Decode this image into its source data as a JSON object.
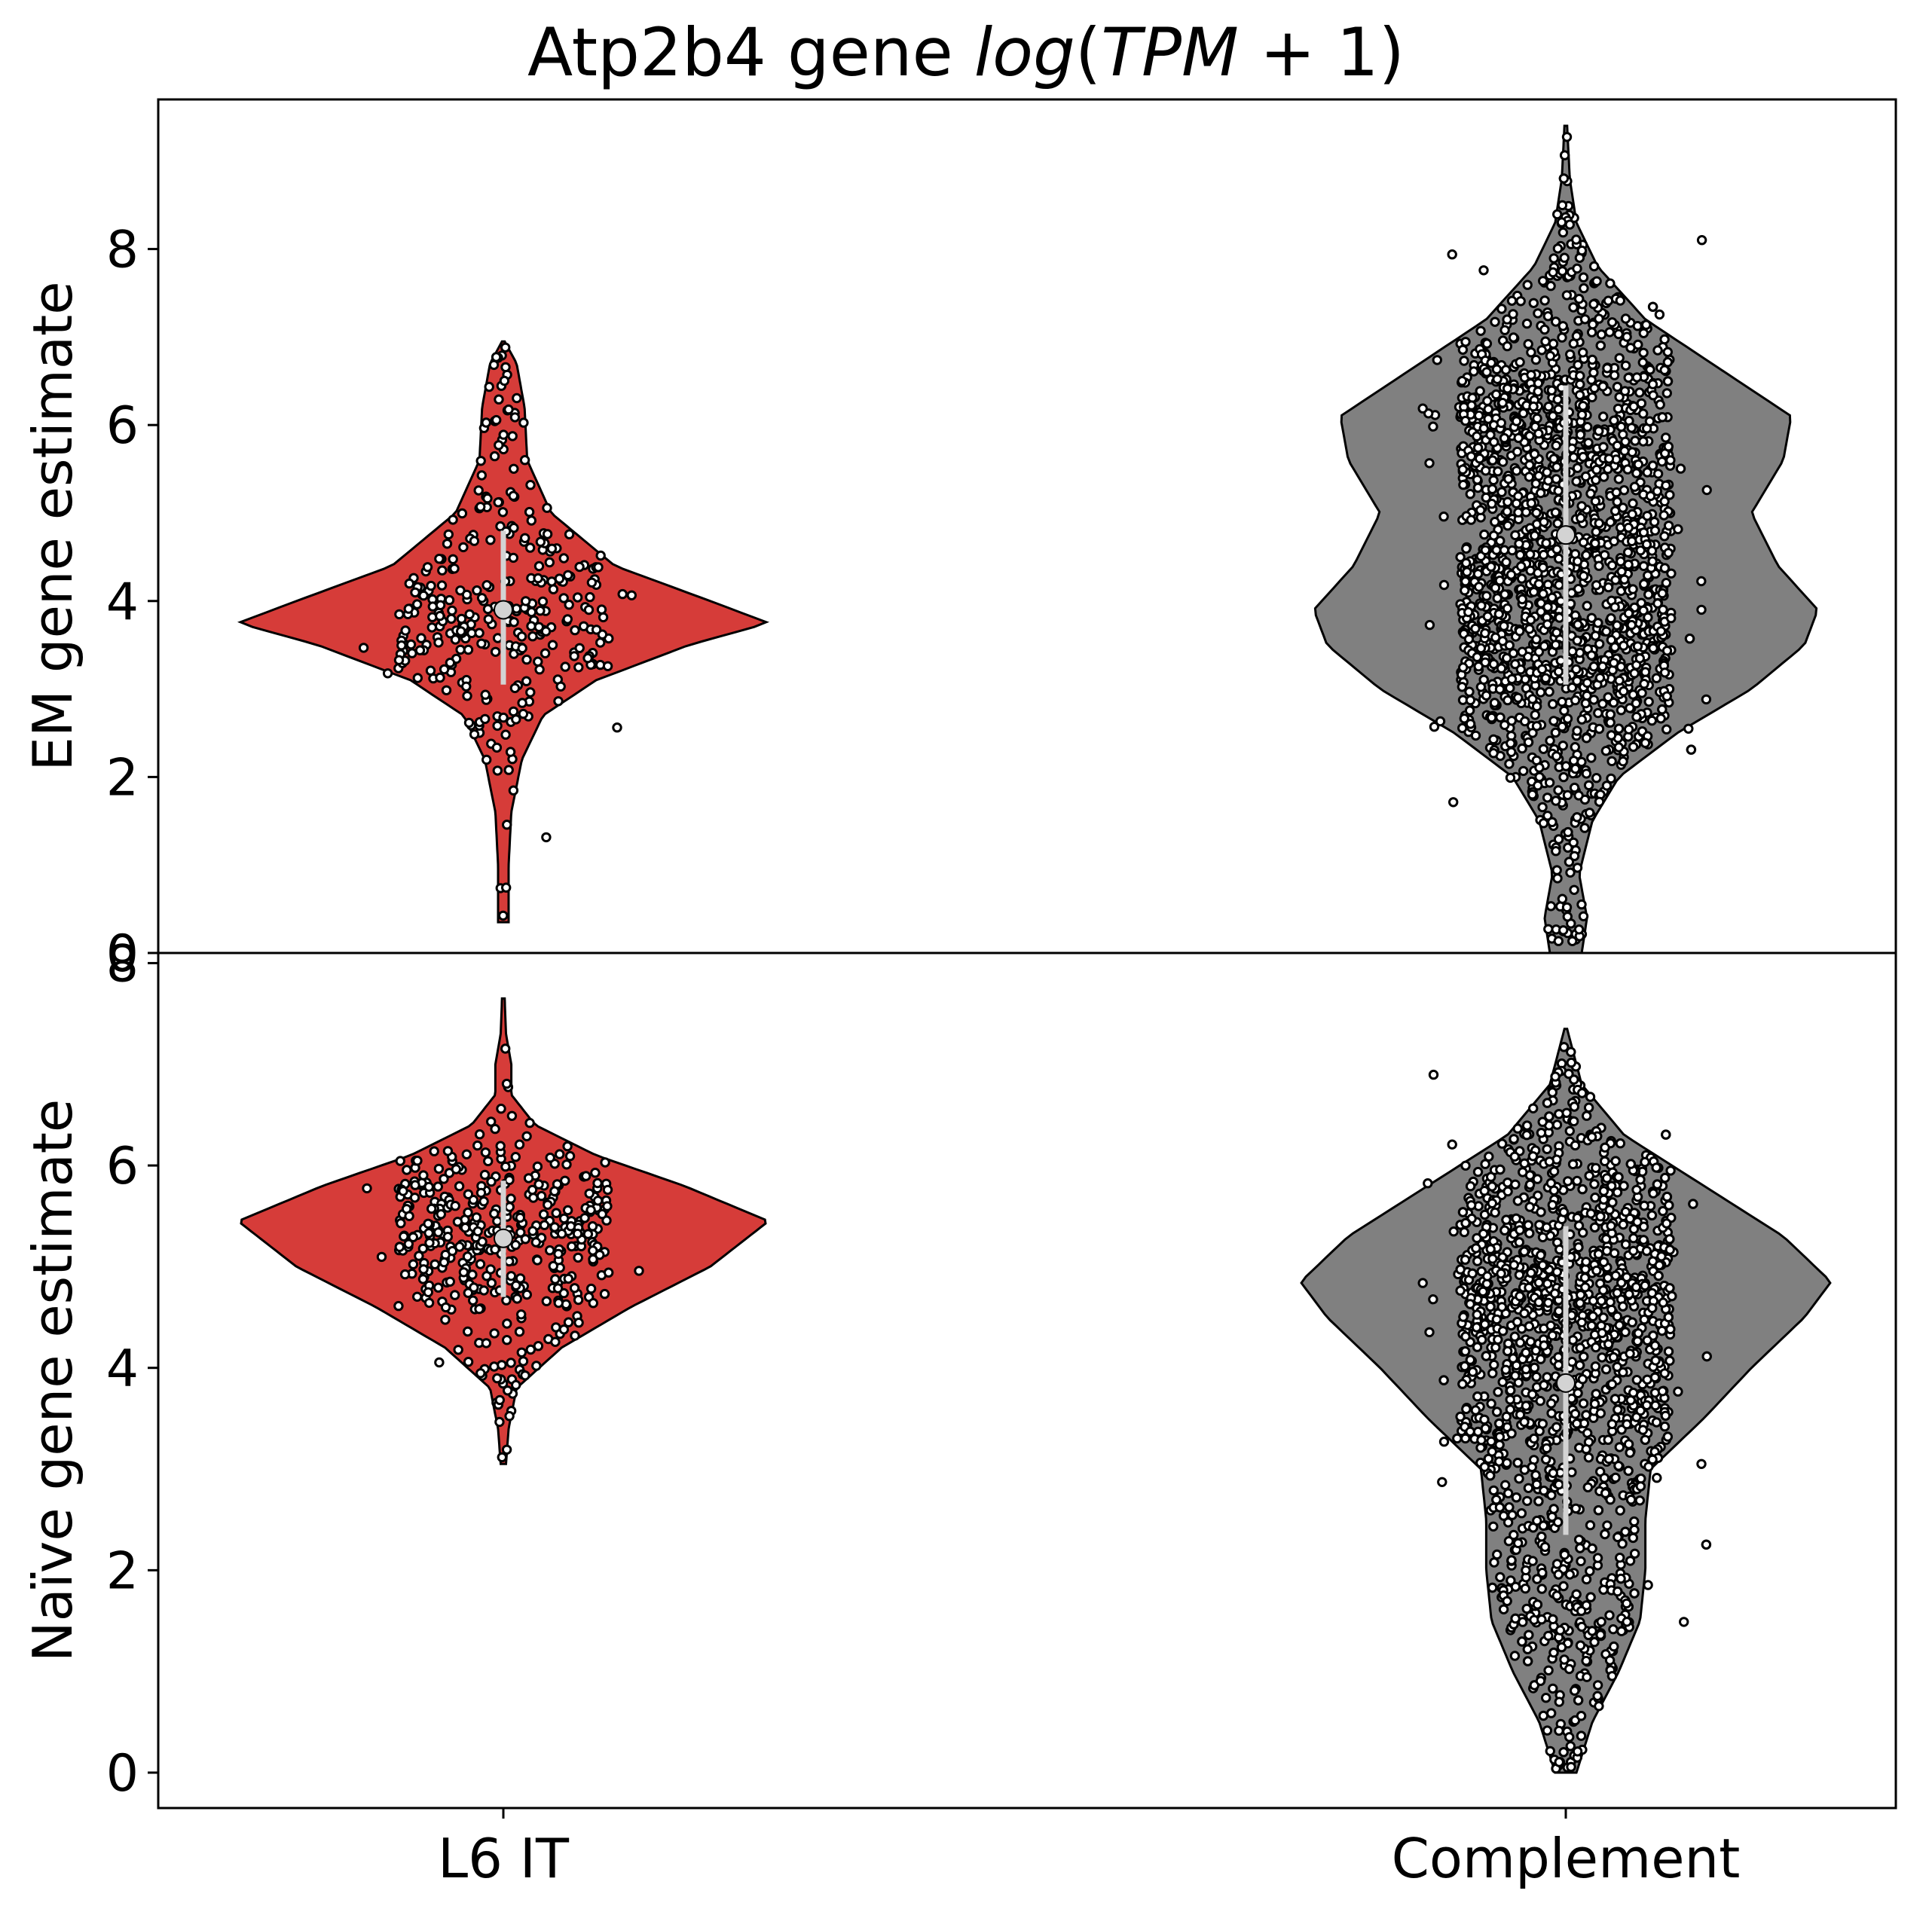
{
  "chart_data": {
    "type": "violin",
    "title_prefix": "Atp2b4 gene ",
    "title_math": "log",
    "title_paren_open": "(",
    "title_math_inner": "TPM",
    "title_math_tail": " + 1)",
    "categories": [
      "L6 IT",
      "Complement"
    ],
    "colors": {
      "L6 IT": "#d63c39",
      "Complement": "#808080"
    },
    "panels": [
      {
        "ylabel": "EM gene estimate",
        "ylim": [
          0,
          9.7
        ],
        "yticks": [
          "0",
          "2",
          "4",
          "6",
          "8"
        ],
        "groups": [
          {
            "name": "L6 IT",
            "median": 3.9,
            "q1": 3.05,
            "q3": 4.8,
            "profile": [
              [
                0.35,
                0.02
              ],
              [
                1.0,
                0.02
              ],
              [
                1.6,
                0.03
              ],
              [
                2.2,
                0.07
              ],
              [
                2.7,
                0.15
              ],
              [
                3.1,
                0.35
              ],
              [
                3.5,
                0.7
              ],
              [
                3.75,
                1.0
              ],
              [
                4.0,
                0.78
              ],
              [
                4.4,
                0.42
              ],
              [
                5.0,
                0.18
              ],
              [
                5.6,
                0.09
              ],
              [
                6.2,
                0.08
              ],
              [
                6.7,
                0.05
              ],
              [
                6.95,
                0.005
              ]
            ],
            "n_points": 320
          },
          {
            "name": "Complement",
            "median": 4.75,
            "q1": 3.05,
            "q3": 6.45,
            "profile": [
              [
                0.0,
                0.06
              ],
              [
                0.4,
                0.08
              ],
              [
                0.9,
                0.05
              ],
              [
                1.5,
                0.1
              ],
              [
                2.0,
                0.2
              ],
              [
                2.5,
                0.42
              ],
              [
                3.0,
                0.7
              ],
              [
                3.5,
                0.9
              ],
              [
                3.9,
                0.95
              ],
              [
                4.4,
                0.8
              ],
              [
                5.0,
                0.7
              ],
              [
                5.6,
                0.82
              ],
              [
                6.1,
                0.85
              ],
              [
                6.6,
                0.6
              ],
              [
                7.2,
                0.3
              ],
              [
                7.8,
                0.12
              ],
              [
                8.3,
                0.04
              ],
              [
                8.8,
                0.015
              ],
              [
                9.4,
                0.005
              ]
            ],
            "n_points": 1900
          }
        ]
      },
      {
        "ylabel": "Naïve gene estimate",
        "ylim": [
          -0.35,
          8.1
        ],
        "yticks": [
          "0",
          "2",
          "4",
          "6",
          "8"
        ],
        "groups": [
          {
            "name": "L6 IT",
            "median": 5.28,
            "q1": 4.7,
            "q3": 5.85,
            "profile": [
              [
                3.05,
                0.01
              ],
              [
                3.4,
                0.02
              ],
              [
                3.8,
                0.05
              ],
              [
                4.2,
                0.22
              ],
              [
                4.6,
                0.48
              ],
              [
                5.0,
                0.78
              ],
              [
                5.45,
                1.0
              ],
              [
                5.8,
                0.68
              ],
              [
                6.1,
                0.35
              ],
              [
                6.4,
                0.12
              ],
              [
                6.7,
                0.03
              ],
              [
                7.0,
                0.03
              ],
              [
                7.3,
                0.01
              ],
              [
                7.65,
                0.005
              ]
            ],
            "n_points": 420
          },
          {
            "name": "Complement",
            "median": 3.85,
            "q1": 2.35,
            "q3": 5.4,
            "profile": [
              [
                0.0,
                0.04
              ],
              [
                0.5,
                0.1
              ],
              [
                1.0,
                0.2
              ],
              [
                1.5,
                0.28
              ],
              [
                2.0,
                0.3
              ],
              [
                2.5,
                0.3
              ],
              [
                3.0,
                0.32
              ],
              [
                3.5,
                0.52
              ],
              [
                4.0,
                0.7
              ],
              [
                4.5,
                0.9
              ],
              [
                4.85,
                1.0
              ],
              [
                5.3,
                0.82
              ],
              [
                5.8,
                0.52
              ],
              [
                6.3,
                0.22
              ],
              [
                6.8,
                0.06
              ],
              [
                7.35,
                0.005
              ]
            ],
            "n_points": 1900
          }
        ]
      }
    ]
  }
}
